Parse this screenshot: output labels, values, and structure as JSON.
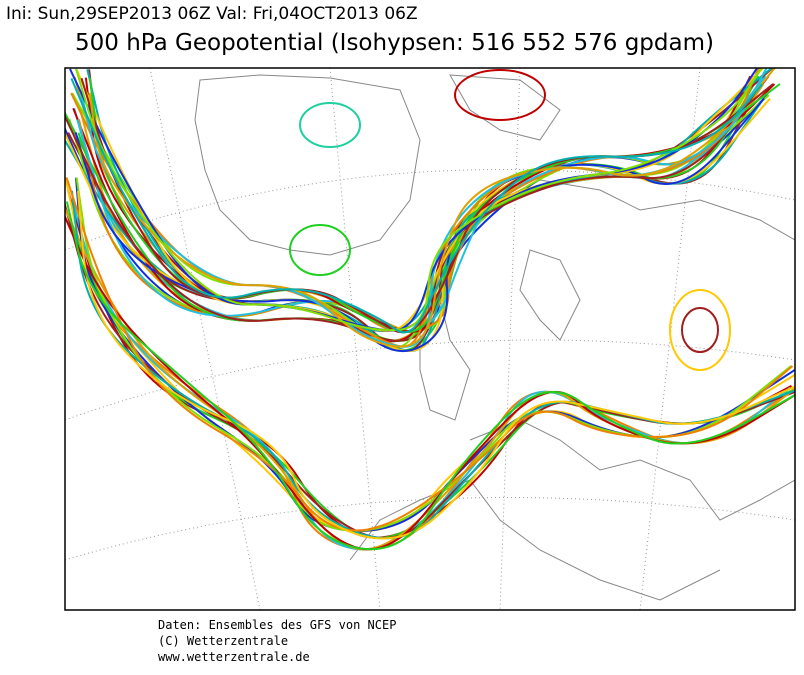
{
  "header": {
    "run_info": "Ini: Sun,29SEP2013 06Z Val: Fri,04OCT2013 06Z",
    "title": "500 hPa Geopotential (Isohypsen: 516 552 576 gpdam)"
  },
  "footer": {
    "lines": [
      "Daten: Ensembles des GFS von NCEP",
      "(C) Wetterzentrale",
      "www.wetterzentrale.de"
    ]
  }
}
